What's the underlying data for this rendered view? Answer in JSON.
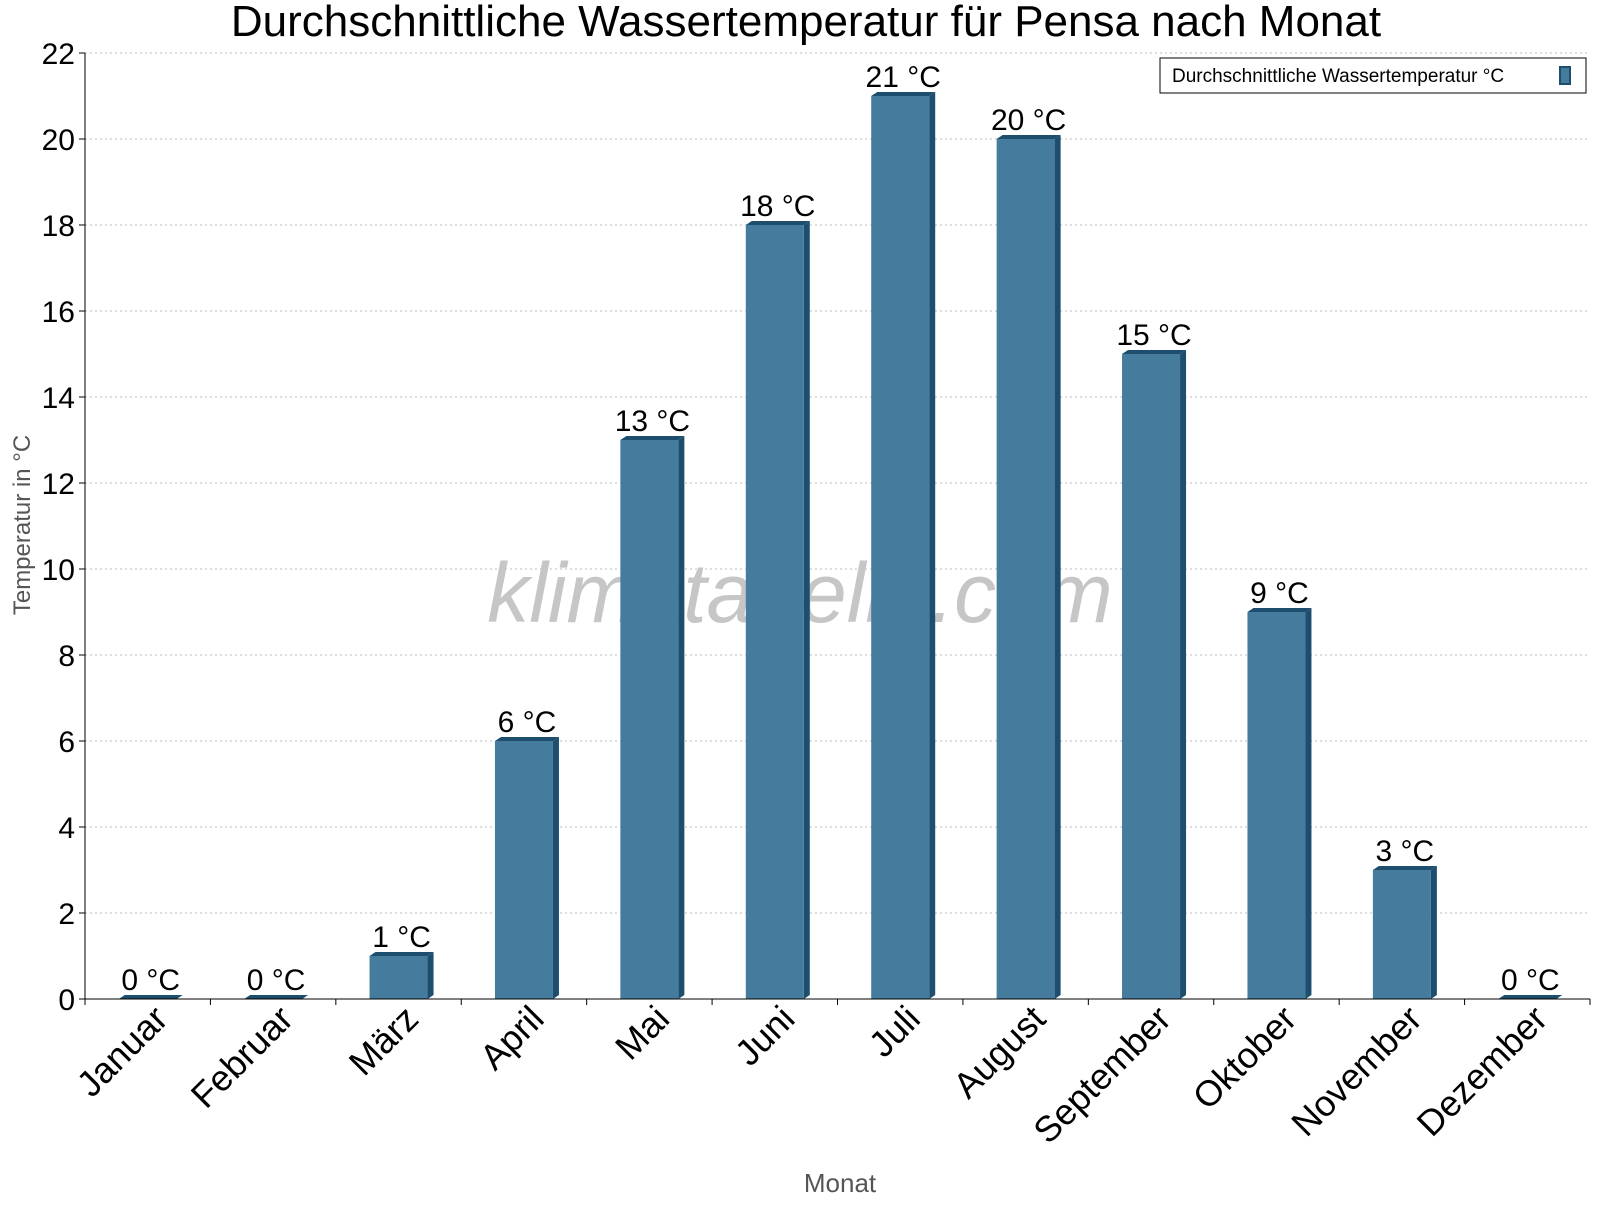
{
  "chart_data": {
    "type": "bar",
    "title": "Durchschnittliche Wassertemperatur für Pensa nach Monat",
    "xlabel": "Monat",
    "ylabel": "Temperatur in °C",
    "categories": [
      "Januar",
      "Februar",
      "März",
      "April",
      "Mai",
      "Juni",
      "Juli",
      "August",
      "September",
      "Oktober",
      "November",
      "Dezember"
    ],
    "series": [
      {
        "name": "Durchschnittliche Wassertemperatur °C",
        "values": [
          0,
          0,
          1,
          6,
          13,
          18,
          21,
          20,
          15,
          9,
          3,
          0
        ]
      }
    ],
    "data_labels": [
      "0 °C",
      "0 °C",
      "1 °C",
      "6 °C",
      "13 °C",
      "18 °C",
      "21 °C",
      "20 °C",
      "15 °C",
      "9 °C",
      "3 °C",
      "0 °C"
    ],
    "ylim": [
      0,
      22
    ],
    "yticks": [
      0,
      2,
      4,
      6,
      8,
      10,
      12,
      14,
      16,
      18,
      20,
      22
    ],
    "grid": true,
    "legend_position": "top-right",
    "watermark": "klimatabelle.com",
    "colors": {
      "bar_face": "#457b9d",
      "bar_side": "#1d4e6e",
      "bar_top": "#1d4e6e",
      "grid": "#bdbdbd",
      "axis": "#000000",
      "axis_title": "#555555",
      "watermark": "#c6c6c6"
    }
  }
}
